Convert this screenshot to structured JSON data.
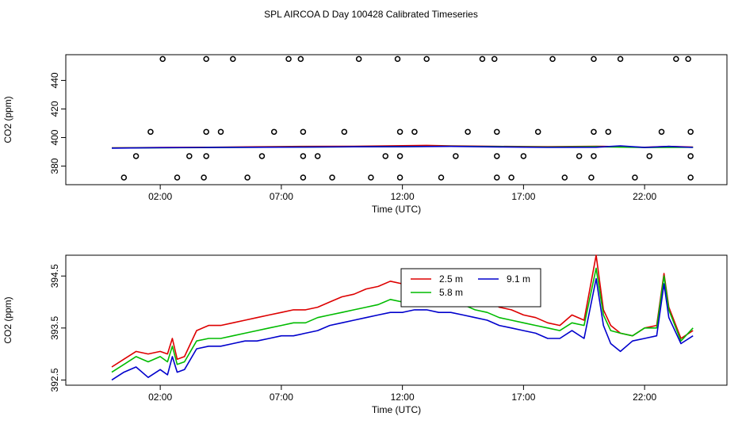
{
  "figure": {
    "title": "SPL AIRCOA D  Day 100428  Calibrated Timeseries"
  },
  "colors": {
    "series_2_5": "#dd0000",
    "series_5_8": "#00bb00",
    "series_9_1": "#0000cc",
    "overlay_marker": "#000000"
  },
  "chart_data": [
    {
      "type": "line",
      "panel": "top",
      "title": "",
      "xlabel": "Time (UTC)",
      "ylabel": "CO2 (ppm)",
      "xlim": [
        -1.9,
        25.4
      ],
      "ylim": [
        367,
        458
      ],
      "x_ticks": [
        2,
        7,
        12,
        17,
        22
      ],
      "x_tick_labels": [
        "02:00",
        "07:00",
        "12:00",
        "17:00",
        "22:00"
      ],
      "y_ticks": [
        380,
        400,
        420,
        440
      ],
      "y_tick_labels": [
        "380",
        "400",
        "420",
        "440"
      ],
      "series": [
        {
          "name": "2.5 m",
          "color": "#dd0000",
          "x": [
            0,
            2,
            4,
            6,
            8,
            10,
            12,
            13,
            14,
            16,
            18,
            20,
            22,
            23,
            24
          ],
          "values": [
            392.8,
            393.0,
            393.2,
            393.5,
            393.8,
            393.9,
            394.3,
            394.5,
            394.2,
            393.8,
            393.6,
            393.9,
            393.2,
            393.8,
            393.3
          ]
        },
        {
          "name": "5.8 m",
          "color": "#00bb00",
          "x": [
            0,
            4,
            8,
            12,
            14,
            18,
            20,
            22,
            24
          ],
          "values": [
            392.7,
            393.0,
            393.4,
            393.7,
            393.9,
            393.3,
            393.6,
            393.0,
            393.2
          ]
        },
        {
          "name": "9.1 m",
          "color": "#0000cc",
          "x": [
            0,
            2,
            4,
            6,
            8,
            10,
            12,
            14,
            16,
            18,
            20,
            21,
            22,
            23,
            24
          ],
          "values": [
            392.6,
            392.9,
            393.0,
            393.2,
            393.3,
            393.5,
            393.6,
            393.8,
            393.4,
            393.1,
            393.2,
            394.2,
            393.0,
            393.8,
            393.1
          ]
        },
        {
          "name": "markers",
          "style": "circle",
          "color": "#000000",
          "x": [
            0.5,
            1.0,
            1.6,
            2.1,
            2.7,
            3.2,
            3.8,
            3.9,
            3.9,
            3.9,
            4.5,
            5.0,
            5.6,
            6.2,
            6.7,
            7.3,
            7.8,
            7.9,
            7.9,
            7.9,
            8.5,
            9.1,
            9.6,
            10.2,
            10.7,
            11.3,
            11.8,
            11.9,
            11.9,
            11.9,
            12.5,
            13.0,
            13.6,
            14.2,
            14.7,
            15.3,
            15.8,
            15.9,
            15.9,
            15.9,
            16.5,
            17.0,
            17.6,
            18.2,
            18.7,
            19.3,
            19.8,
            19.9,
            19.9,
            19.9,
            20.5,
            21.0,
            21.6,
            22.2,
            22.7,
            23.3,
            23.8,
            23.9,
            23.9,
            23.9
          ],
          "values": [
            372,
            387,
            404,
            455,
            372,
            387,
            372,
            387,
            404,
            455,
            404,
            455,
            372,
            387,
            404,
            455,
            455,
            387,
            372,
            404,
            387,
            372,
            404,
            455,
            372,
            387,
            455,
            372,
            387,
            404,
            404,
            455,
            372,
            387,
            404,
            455,
            455,
            404,
            387,
            372,
            372,
            387,
            404,
            455,
            372,
            387,
            372,
            387,
            404,
            455,
            404,
            455,
            372,
            387,
            404,
            455,
            455,
            404,
            387,
            372
          ]
        }
      ]
    },
    {
      "type": "line",
      "panel": "bottom",
      "title": "",
      "xlabel": "Time (UTC)",
      "ylabel": "CO2 (ppm)",
      "xlim": [
        -1.9,
        25.4
      ],
      "ylim": [
        392.4,
        394.9
      ],
      "x_ticks": [
        2,
        7,
        12,
        17,
        22
      ],
      "x_tick_labels": [
        "02:00",
        "07:00",
        "12:00",
        "17:00",
        "22:00"
      ],
      "y_ticks": [
        392.5,
        393.5,
        394.5
      ],
      "y_tick_labels": [
        "392.5",
        "393.5",
        "394.5"
      ],
      "legend": {
        "placement": "top-center",
        "columns": 2,
        "entries": [
          "2.5 m",
          "5.8 m",
          "9.1 m"
        ]
      },
      "series": [
        {
          "name": "2.5 m",
          "color": "#dd0000",
          "x": [
            0,
            0.5,
            1,
            1.5,
            2,
            2.3,
            2.5,
            2.7,
            3.0,
            3.5,
            4,
            4.5,
            5,
            5.5,
            6,
            6.5,
            7,
            7.5,
            8,
            8.5,
            9,
            9.5,
            10,
            10.5,
            11,
            11.5,
            12,
            12.5,
            13,
            13.5,
            14,
            14.5,
            15,
            15.5,
            16,
            16.5,
            17,
            17.5,
            18,
            18.5,
            19,
            19.5,
            20,
            20.3,
            20.6,
            21,
            21.5,
            22,
            22.5,
            22.8,
            23,
            23.5,
            24
          ],
          "values": [
            392.75,
            392.9,
            393.05,
            393.0,
            393.05,
            393.0,
            393.3,
            392.9,
            392.95,
            393.45,
            393.55,
            393.55,
            393.6,
            393.65,
            393.7,
            393.75,
            393.8,
            393.85,
            393.85,
            393.9,
            394.0,
            394.1,
            394.15,
            394.25,
            394.3,
            394.4,
            394.35,
            394.45,
            394.35,
            394.3,
            394.2,
            394.2,
            394.1,
            394.05,
            393.9,
            393.85,
            393.75,
            393.7,
            393.6,
            393.55,
            393.75,
            393.65,
            394.9,
            393.85,
            393.55,
            393.4,
            393.35,
            393.5,
            393.55,
            394.55,
            393.9,
            393.3,
            393.45
          ]
        },
        {
          "name": "5.8 m",
          "color": "#00bb00",
          "x": [
            0,
            0.5,
            1,
            1.5,
            2,
            2.3,
            2.5,
            2.7,
            3.0,
            3.5,
            4,
            4.5,
            5,
            5.5,
            6,
            6.5,
            7,
            7.5,
            8,
            8.5,
            9,
            9.5,
            10,
            10.5,
            11,
            11.5,
            12,
            12.5,
            13,
            13.5,
            14,
            14.5,
            15,
            15.5,
            16,
            16.5,
            17,
            17.5,
            18,
            18.5,
            19,
            19.5,
            20,
            20.3,
            20.6,
            21,
            21.5,
            22,
            22.5,
            22.8,
            23,
            23.5,
            24
          ],
          "values": [
            392.65,
            392.8,
            392.95,
            392.85,
            392.95,
            392.85,
            393.15,
            392.8,
            392.85,
            393.25,
            393.3,
            393.3,
            393.35,
            393.4,
            393.45,
            393.5,
            393.55,
            393.6,
            393.6,
            393.7,
            393.75,
            393.8,
            393.85,
            393.9,
            393.95,
            394.05,
            394.0,
            394.1,
            394.05,
            394.0,
            393.95,
            393.95,
            393.85,
            393.8,
            393.7,
            393.65,
            393.6,
            393.55,
            393.5,
            393.45,
            393.6,
            393.55,
            394.65,
            393.75,
            393.45,
            393.4,
            393.35,
            393.5,
            393.5,
            394.5,
            393.85,
            393.25,
            393.5
          ]
        },
        {
          "name": "9.1 m",
          "color": "#0000cc",
          "x": [
            0,
            0.5,
            1,
            1.5,
            2,
            2.3,
            2.5,
            2.7,
            3.0,
            3.5,
            4,
            4.5,
            5,
            5.5,
            6,
            6.5,
            7,
            7.5,
            8,
            8.5,
            9,
            9.5,
            10,
            10.5,
            11,
            11.5,
            12,
            12.5,
            13,
            13.5,
            14,
            14.5,
            15,
            15.5,
            16,
            16.5,
            17,
            17.5,
            18,
            18.5,
            19,
            19.5,
            20,
            20.3,
            20.6,
            21,
            21.5,
            22,
            22.5,
            22.8,
            23,
            23.5,
            24
          ],
          "values": [
            392.5,
            392.65,
            392.75,
            392.55,
            392.7,
            392.6,
            392.95,
            392.65,
            392.7,
            393.1,
            393.15,
            393.15,
            393.2,
            393.25,
            393.25,
            393.3,
            393.35,
            393.35,
            393.4,
            393.45,
            393.55,
            393.6,
            393.65,
            393.7,
            393.75,
            393.8,
            393.8,
            393.85,
            393.85,
            393.8,
            393.8,
            393.75,
            393.7,
            393.65,
            393.55,
            393.5,
            393.45,
            393.4,
            393.3,
            393.3,
            393.45,
            393.3,
            394.45,
            393.55,
            393.2,
            393.05,
            393.25,
            393.3,
            393.35,
            394.35,
            393.7,
            393.2,
            393.35
          ]
        }
      ]
    }
  ]
}
